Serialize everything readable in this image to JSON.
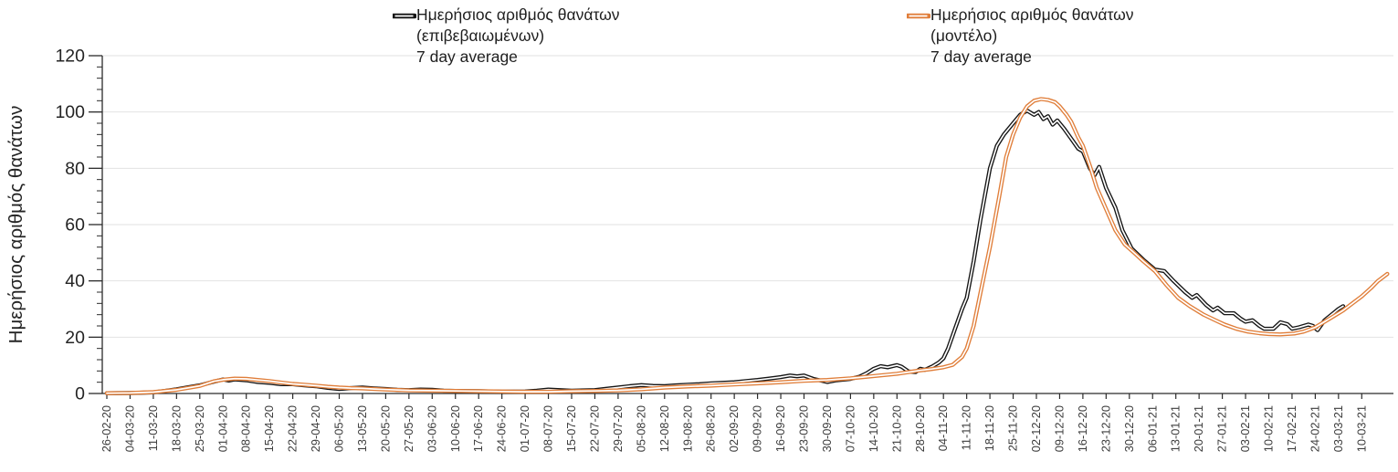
{
  "legend": {
    "items": [
      {
        "line1": "Ημερήσιος αριθμός θανάτων",
        "line2": "(επιβεβαιωμένων)",
        "line3": "7 day average",
        "color": "#151515"
      },
      {
        "line1": "Ημερήσιος αριθμός θανάτων",
        "line2": "(μοντέλο)",
        "line3": "7 day average",
        "color": "#e07e3a"
      }
    ]
  },
  "y_axis": {
    "title": "Ημερήσιος αριθμός θανάτων",
    "ticks": [
      0,
      20,
      40,
      60,
      80,
      100,
      120
    ]
  },
  "chart_data": {
    "type": "line",
    "title": "",
    "xlabel": "",
    "ylabel": "Ημερήσιος αριθμός θανάτων",
    "ylim": [
      0,
      120
    ],
    "y_ticks": [
      0,
      20,
      40,
      60,
      80,
      100,
      120
    ],
    "y_minor_tick_step": 4,
    "grid": "horizontal",
    "gridline_color": "#e2e2e2",
    "axis_color": "#2b2b2b",
    "x_label_color": "#3d3d3d",
    "y_label_color": "#242424",
    "legend_position": "top",
    "line_style": "colored outline with white core (double line)",
    "points_format": "[category_index (fractional weeks), value]",
    "categories": [
      "26-02-20",
      "04-03-20",
      "11-03-20",
      "18-03-20",
      "25-03-20",
      "01-04-20",
      "08-04-20",
      "15-04-20",
      "22-04-20",
      "29-04-20",
      "06-05-20",
      "13-05-20",
      "20-05-20",
      "27-05-20",
      "03-06-20",
      "10-06-20",
      "17-06-20",
      "24-06-20",
      "01-07-20",
      "08-07-20",
      "15-07-20",
      "22-07-20",
      "29-07-20",
      "05-08-20",
      "12-08-20",
      "19-08-20",
      "26-08-20",
      "02-09-20",
      "09-09-20",
      "16-09-20",
      "23-09-20",
      "30-09-20",
      "07-10-20",
      "14-10-20",
      "21-10-20",
      "28-10-20",
      "04-11-20",
      "11-11-20",
      "18-11-20",
      "25-11-20",
      "02-12-20",
      "09-12-20",
      "16-12-20",
      "23-12-20",
      "30-12-20",
      "06-01-21",
      "13-01-21",
      "20-01-21",
      "27-01-21",
      "03-02-21",
      "10-02-21",
      "17-02-21",
      "24-02-21",
      "03-03-21",
      "10-03-21"
    ],
    "series": [
      {
        "name": "Ημερήσιος αριθμός θανάτων (επιβεβαιωμένων) 7 day average",
        "color": "#151515",
        "points": [
          [
            0,
            0.1
          ],
          [
            1,
            0.15
          ],
          [
            2,
            0.4
          ],
          [
            2.5,
            0.9
          ],
          [
            3,
            1.5
          ],
          [
            3.5,
            2.2
          ],
          [
            4,
            2.9
          ],
          [
            4.5,
            4.0
          ],
          [
            5,
            5.0
          ],
          [
            5.25,
            4.6
          ],
          [
            5.5,
            5.0
          ],
          [
            6,
            4.7
          ],
          [
            6.5,
            4.1
          ],
          [
            7,
            3.8
          ],
          [
            7.5,
            3.3
          ],
          [
            8,
            3.3
          ],
          [
            8.5,
            2.9
          ],
          [
            9,
            2.6
          ],
          [
            9.5,
            2.0
          ],
          [
            10,
            1.6
          ],
          [
            10.5,
            1.9
          ],
          [
            11,
            2.1
          ],
          [
            11.5,
            1.8
          ],
          [
            12,
            1.6
          ],
          [
            12.5,
            1.3
          ],
          [
            13,
            1.2
          ],
          [
            13.5,
            1.4
          ],
          [
            14,
            1.3
          ],
          [
            14.5,
            1.0
          ],
          [
            15,
            0.9
          ],
          [
            16,
            0.8
          ],
          [
            17,
            0.6
          ],
          [
            18,
            0.7
          ],
          [
            18.5,
            1.0
          ],
          [
            19,
            1.4
          ],
          [
            19.5,
            1.2
          ],
          [
            20,
            1.0
          ],
          [
            21,
            1.2
          ],
          [
            21.5,
            1.7
          ],
          [
            22,
            2.1
          ],
          [
            22.5,
            2.6
          ],
          [
            23,
            3.0
          ],
          [
            23.5,
            2.7
          ],
          [
            24,
            2.6
          ],
          [
            24.5,
            2.9
          ],
          [
            25,
            3.1
          ],
          [
            25.5,
            3.3
          ],
          [
            26,
            3.6
          ],
          [
            26.5,
            3.8
          ],
          [
            27,
            4.0
          ],
          [
            27.5,
            4.4
          ],
          [
            28,
            4.8
          ],
          [
            28.5,
            5.3
          ],
          [
            29,
            5.8
          ],
          [
            29.4,
            6.4
          ],
          [
            29.7,
            6.1
          ],
          [
            30,
            6.4
          ],
          [
            30.4,
            5.2
          ],
          [
            31,
            4.1
          ],
          [
            31.4,
            4.7
          ],
          [
            32,
            5.2
          ],
          [
            32.4,
            6.0
          ],
          [
            32.7,
            7.2
          ],
          [
            33,
            8.8
          ],
          [
            33.3,
            9.7
          ],
          [
            33.6,
            9.3
          ],
          [
            34,
            10.1
          ],
          [
            34.2,
            9.5
          ],
          [
            34.5,
            7.8
          ],
          [
            34.8,
            7.6
          ],
          [
            35,
            8.8
          ],
          [
            35.2,
            8.4
          ],
          [
            35.5,
            9.5
          ],
          [
            35.8,
            11
          ],
          [
            36,
            12.5
          ],
          [
            36.2,
            16
          ],
          [
            36.5,
            23
          ],
          [
            36.8,
            30
          ],
          [
            37,
            34
          ],
          [
            37.3,
            47
          ],
          [
            37.6,
            62
          ],
          [
            38,
            80
          ],
          [
            38.3,
            88
          ],
          [
            38.6,
            92
          ],
          [
            39,
            96
          ],
          [
            39.3,
            99
          ],
          [
            39.6,
            100.5
          ],
          [
            39.9,
            99
          ],
          [
            40.1,
            100
          ],
          [
            40.3,
            97.5
          ],
          [
            40.5,
            98.5
          ],
          [
            40.7,
            95.5
          ],
          [
            40.9,
            97
          ],
          [
            41.2,
            94
          ],
          [
            41.5,
            90.5
          ],
          [
            41.8,
            87
          ],
          [
            42,
            86
          ],
          [
            42.3,
            80
          ],
          [
            42.5,
            77.5
          ],
          [
            42.7,
            80.5
          ],
          [
            43,
            73
          ],
          [
            43.4,
            66
          ],
          [
            43.7,
            58
          ],
          [
            44.1,
            51.5
          ],
          [
            44.6,
            47.5
          ],
          [
            45.1,
            44
          ],
          [
            45.5,
            43.5
          ],
          [
            45.9,
            40
          ],
          [
            46.4,
            36
          ],
          [
            46.7,
            34
          ],
          [
            46.9,
            35
          ],
          [
            47.3,
            31.5
          ],
          [
            47.6,
            29.5
          ],
          [
            47.8,
            30.5
          ],
          [
            48.1,
            28.5
          ],
          [
            48.5,
            28.5
          ],
          [
            48.8,
            26.5
          ],
          [
            49,
            25.5
          ],
          [
            49.3,
            26
          ],
          [
            49.6,
            24
          ],
          [
            49.8,
            23
          ],
          [
            50.2,
            23
          ],
          [
            50.5,
            25.3
          ],
          [
            50.8,
            24.6
          ],
          [
            51,
            23
          ],
          [
            51.3,
            23.5
          ],
          [
            51.7,
            24.5
          ],
          [
            51.9,
            24
          ],
          [
            52.1,
            22.5
          ],
          [
            52.4,
            26
          ],
          [
            52.7,
            28
          ],
          [
            53,
            30
          ],
          [
            53.2,
            31
          ]
        ]
      },
      {
        "name": "Ημερήσιος αριθμός θανάτων (μοντέλο) 7 day average",
        "color": "#e07e3a",
        "points": [
          [
            0,
            0.1
          ],
          [
            1,
            0.2
          ],
          [
            2,
            0.5
          ],
          [
            3,
            1.3
          ],
          [
            4,
            2.7
          ],
          [
            4.6,
            4.3
          ],
          [
            5,
            4.9
          ],
          [
            5.5,
            5.3
          ],
          [
            6,
            5.2
          ],
          [
            6.5,
            4.8
          ],
          [
            7,
            4.4
          ],
          [
            7.5,
            3.9
          ],
          [
            8,
            3.4
          ],
          [
            8.5,
            3.1
          ],
          [
            9,
            2.8
          ],
          [
            9.5,
            2.4
          ],
          [
            10,
            2.1
          ],
          [
            10.5,
            1.9
          ],
          [
            11,
            1.8
          ],
          [
            11.5,
            1.6
          ],
          [
            12,
            1.4
          ],
          [
            13,
            1.1
          ],
          [
            14,
            1.0
          ],
          [
            15,
            0.9
          ],
          [
            16,
            0.8
          ],
          [
            17,
            0.7
          ],
          [
            18,
            0.6
          ],
          [
            19,
            0.6
          ],
          [
            20,
            0.8
          ],
          [
            21,
            0.9
          ],
          [
            22,
            1.1
          ],
          [
            23,
            1.5
          ],
          [
            24,
            2.1
          ],
          [
            25,
            2.5
          ],
          [
            26,
            2.8
          ],
          [
            27,
            3.2
          ],
          [
            28,
            3.6
          ],
          [
            29,
            4.0
          ],
          [
            30,
            4.5
          ],
          [
            31,
            4.8
          ],
          [
            32,
            5.4
          ],
          [
            33,
            6.2
          ],
          [
            34,
            7.0
          ],
          [
            34.5,
            7.6
          ],
          [
            35,
            8.2
          ],
          [
            35.5,
            8.7
          ],
          [
            36,
            9.3
          ],
          [
            36.4,
            10.2
          ],
          [
            36.8,
            13
          ],
          [
            37,
            16
          ],
          [
            37.3,
            24
          ],
          [
            37.6,
            36
          ],
          [
            38,
            52
          ],
          [
            38.4,
            70
          ],
          [
            38.7,
            84
          ],
          [
            39,
            92
          ],
          [
            39.3,
            98
          ],
          [
            39.6,
            102
          ],
          [
            39.9,
            104
          ],
          [
            40.2,
            104.6
          ],
          [
            40.5,
            104.3
          ],
          [
            40.8,
            103.5
          ],
          [
            41,
            102
          ],
          [
            41.3,
            99
          ],
          [
            41.5,
            96.5
          ],
          [
            41.8,
            91
          ],
          [
            42,
            88
          ],
          [
            42.3,
            81
          ],
          [
            42.6,
            73
          ],
          [
            43,
            65.5
          ],
          [
            43.4,
            58
          ],
          [
            43.8,
            53
          ],
          [
            44.2,
            50
          ],
          [
            44.6,
            47
          ],
          [
            45.1,
            43.5
          ],
          [
            45.6,
            38.5
          ],
          [
            46.1,
            34
          ],
          [
            46.6,
            31
          ],
          [
            47.2,
            28
          ],
          [
            47.7,
            26
          ],
          [
            48.1,
            24.5
          ],
          [
            48.6,
            23
          ],
          [
            49.1,
            22
          ],
          [
            49.6,
            21.4
          ],
          [
            50,
            21.1
          ],
          [
            50.5,
            21
          ],
          [
            51.1,
            21.3
          ],
          [
            51.5,
            22
          ],
          [
            52,
            23.5
          ],
          [
            52.4,
            25.5
          ],
          [
            52.8,
            27.5
          ],
          [
            53.2,
            29.5
          ],
          [
            53.6,
            32
          ],
          [
            54,
            34.5
          ],
          [
            54.4,
            37.5
          ],
          [
            54.7,
            40
          ],
          [
            55.1,
            42.5
          ]
        ]
      }
    ]
  }
}
